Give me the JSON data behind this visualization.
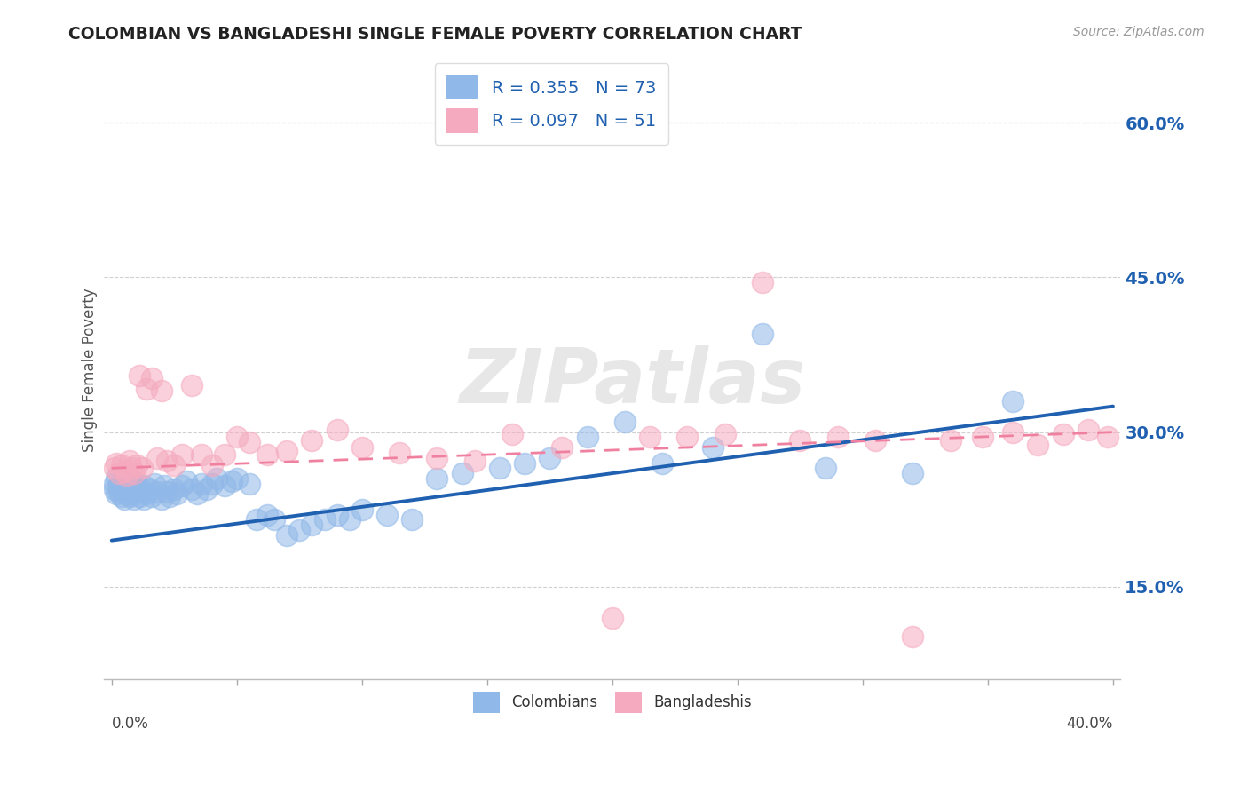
{
  "title": "COLOMBIAN VS BANGLADESHI SINGLE FEMALE POVERTY CORRELATION CHART",
  "source": "Source: ZipAtlas.com",
  "ylabel": "Single Female Poverty",
  "ytick_labels": [
    "15.0%",
    "30.0%",
    "45.0%",
    "60.0%"
  ],
  "ytick_values": [
    0.15,
    0.3,
    0.45,
    0.6
  ],
  "xlim": [
    -0.003,
    0.403
  ],
  "ylim": [
    0.06,
    0.66
  ],
  "colombian_color": "#90B8E8",
  "bangladeshi_color": "#F5AABF",
  "colombian_line_color": "#2060B0",
  "bangladeshi_line_color": "#F080A0",
  "R_colombian": 0.355,
  "N_colombian": 73,
  "R_bangladeshi": 0.097,
  "N_bangladeshi": 51,
  "watermark": "ZIPatlas",
  "background_color": "#FFFFFF",
  "grid_color": "#D0D0D0",
  "legend_label_colombian": "Colombians",
  "legend_label_bangladeshi": "Bangladeshis",
  "axis_label_color": "#2060B0",
  "colombian_x": [
    0.001,
    0.001,
    0.002,
    0.002,
    0.003,
    0.003,
    0.004,
    0.004,
    0.005,
    0.005,
    0.005,
    0.006,
    0.007,
    0.007,
    0.008,
    0.008,
    0.009,
    0.009,
    0.01,
    0.01,
    0.011,
    0.011,
    0.012,
    0.013,
    0.013,
    0.014,
    0.015,
    0.016,
    0.017,
    0.018,
    0.02,
    0.021,
    0.022,
    0.023,
    0.025,
    0.026,
    0.028,
    0.03,
    0.032,
    0.034,
    0.036,
    0.038,
    0.04,
    0.042,
    0.045,
    0.048,
    0.05,
    0.055,
    0.058,
    0.062,
    0.065,
    0.07,
    0.075,
    0.08,
    0.085,
    0.09,
    0.095,
    0.1,
    0.11,
    0.12,
    0.13,
    0.14,
    0.155,
    0.165,
    0.175,
    0.19,
    0.205,
    0.22,
    0.24,
    0.26,
    0.285,
    0.32,
    0.36
  ],
  "colombian_y": [
    0.245,
    0.25,
    0.24,
    0.255,
    0.242,
    0.248,
    0.238,
    0.252,
    0.235,
    0.245,
    0.25,
    0.242,
    0.238,
    0.255,
    0.245,
    0.24,
    0.248,
    0.235,
    0.242,
    0.25,
    0.238,
    0.245,
    0.242,
    0.235,
    0.248,
    0.24,
    0.245,
    0.238,
    0.25,
    0.242,
    0.235,
    0.248,
    0.242,
    0.238,
    0.245,
    0.24,
    0.248,
    0.252,
    0.245,
    0.24,
    0.25,
    0.245,
    0.25,
    0.255,
    0.248,
    0.252,
    0.255,
    0.25,
    0.215,
    0.22,
    0.215,
    0.2,
    0.205,
    0.21,
    0.215,
    0.22,
    0.215,
    0.225,
    0.22,
    0.215,
    0.255,
    0.26,
    0.265,
    0.27,
    0.275,
    0.295,
    0.31,
    0.27,
    0.285,
    0.395,
    0.265,
    0.26,
    0.33
  ],
  "bangladeshi_x": [
    0.001,
    0.002,
    0.003,
    0.004,
    0.005,
    0.006,
    0.007,
    0.008,
    0.009,
    0.01,
    0.011,
    0.012,
    0.014,
    0.016,
    0.018,
    0.02,
    0.022,
    0.025,
    0.028,
    0.032,
    0.036,
    0.04,
    0.045,
    0.05,
    0.055,
    0.062,
    0.07,
    0.08,
    0.09,
    0.1,
    0.115,
    0.13,
    0.145,
    0.16,
    0.18,
    0.2,
    0.215,
    0.23,
    0.245,
    0.26,
    0.275,
    0.29,
    0.305,
    0.32,
    0.335,
    0.348,
    0.36,
    0.37,
    0.38,
    0.39,
    0.398
  ],
  "bangladeshi_y": [
    0.265,
    0.27,
    0.26,
    0.268,
    0.262,
    0.258,
    0.272,
    0.265,
    0.26,
    0.268,
    0.355,
    0.265,
    0.342,
    0.352,
    0.275,
    0.34,
    0.272,
    0.268,
    0.278,
    0.345,
    0.278,
    0.268,
    0.278,
    0.295,
    0.29,
    0.278,
    0.282,
    0.292,
    0.302,
    0.285,
    0.28,
    0.275,
    0.272,
    0.298,
    0.285,
    0.12,
    0.295,
    0.295,
    0.298,
    0.445,
    0.292,
    0.295,
    0.292,
    0.102,
    0.292,
    0.295,
    0.3,
    0.288,
    0.298,
    0.302,
    0.295
  ]
}
